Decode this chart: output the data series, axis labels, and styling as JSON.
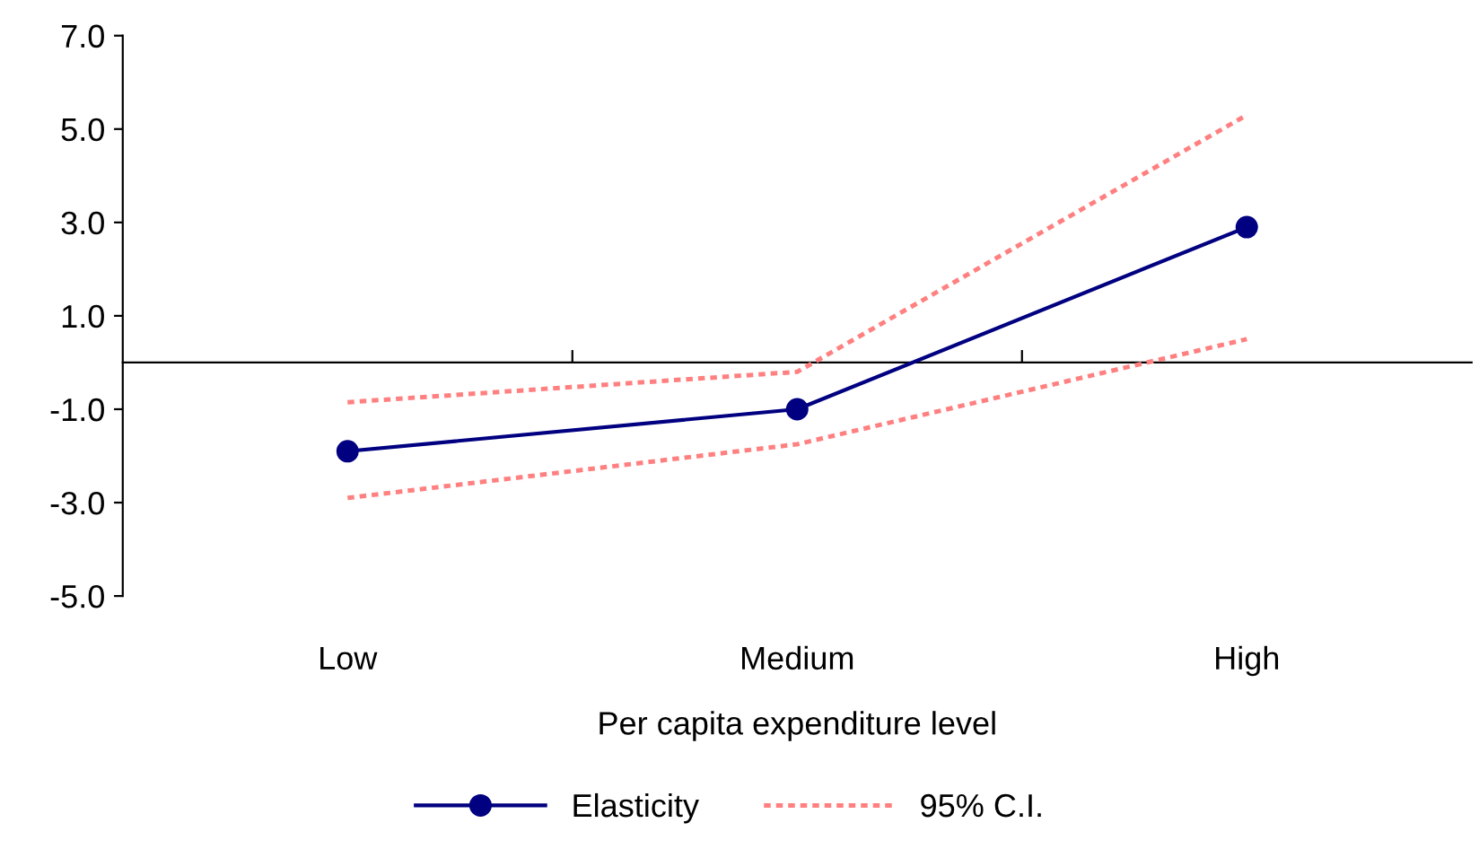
{
  "chart_data": {
    "type": "line",
    "xlabel": "Per capita expenditure level",
    "categories": [
      "Low",
      "Medium",
      "High"
    ],
    "series": [
      {
        "name": "Elasticity",
        "color": "#000080",
        "values": [
          -1.9,
          -1.0,
          2.9
        ],
        "marker": "circle",
        "line_style": "solid"
      },
      {
        "name": "95% C.I.",
        "color": "#ff8080",
        "values": [
          -0.85,
          -0.2,
          5.3
        ],
        "marker": "none",
        "line_style": "dotted"
      },
      {
        "color": "#ff8080",
        "values": [
          -2.9,
          -1.75,
          0.5
        ],
        "marker": "none",
        "line_style": "dotted"
      }
    ],
    "ylim": [
      -5.0,
      7.0
    ],
    "yticks": [
      {
        "value": -5,
        "label": "-5.0"
      },
      {
        "value": -3,
        "label": "-3.0"
      },
      {
        "value": -1,
        "label": "-1.0"
      },
      {
        "value": 1,
        "label": "1.0"
      },
      {
        "value": 3,
        "label": "3.0"
      },
      {
        "value": 5,
        "label": "5.0"
      },
      {
        "value": 7,
        "label": "7.0"
      }
    ],
    "grid": false,
    "legend": "bottom"
  }
}
